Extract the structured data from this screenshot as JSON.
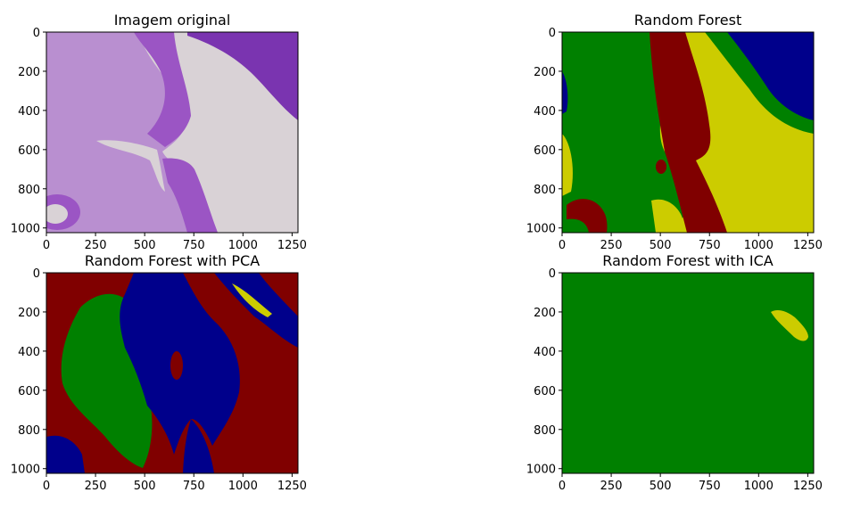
{
  "colors": {
    "tissue_bg": "#d9d2d6",
    "histo_purple": "#9b55c4",
    "histo_dark": "#7a34b0",
    "class_red": "#800000",
    "class_green": "#008000",
    "class_blue": "#00008b",
    "class_yellow": "#cccc00"
  },
  "chart_data": [
    {
      "type": "image",
      "title": "Imagem original",
      "xlim": [
        0,
        1280
      ],
      "ylim": [
        1024,
        0
      ],
      "xticks": [
        "0",
        "250",
        "500",
        "750",
        "1000",
        "1250"
      ],
      "yticks": [
        "0",
        "200",
        "400",
        "600",
        "800",
        "1000"
      ],
      "content": "histology photo"
    },
    {
      "type": "heatmap",
      "title": "Random Forest",
      "xlim": [
        0,
        1280
      ],
      "ylim": [
        1024,
        0
      ],
      "xticks": [
        "0",
        "250",
        "500",
        "750",
        "1000",
        "1250"
      ],
      "yticks": [
        "0",
        "200",
        "400",
        "600",
        "800",
        "1000"
      ],
      "content": "segmentation map"
    },
    {
      "type": "heatmap",
      "title": "Random Forest with PCA",
      "xlim": [
        0,
        1280
      ],
      "ylim": [
        1024,
        0
      ],
      "xticks": [
        "0",
        "250",
        "500",
        "750",
        "1000",
        "1250"
      ],
      "yticks": [
        "0",
        "200",
        "400",
        "600",
        "800",
        "1000"
      ],
      "content": "segmentation map"
    },
    {
      "type": "heatmap",
      "title": "Random Forest with ICA",
      "xlim": [
        0,
        1280
      ],
      "ylim": [
        1024,
        0
      ],
      "xticks": [
        "0",
        "250",
        "500",
        "750",
        "1000",
        "1250"
      ],
      "yticks": [
        "0",
        "200",
        "400",
        "600",
        "800",
        "1000"
      ],
      "content": "segmentation map"
    }
  ]
}
